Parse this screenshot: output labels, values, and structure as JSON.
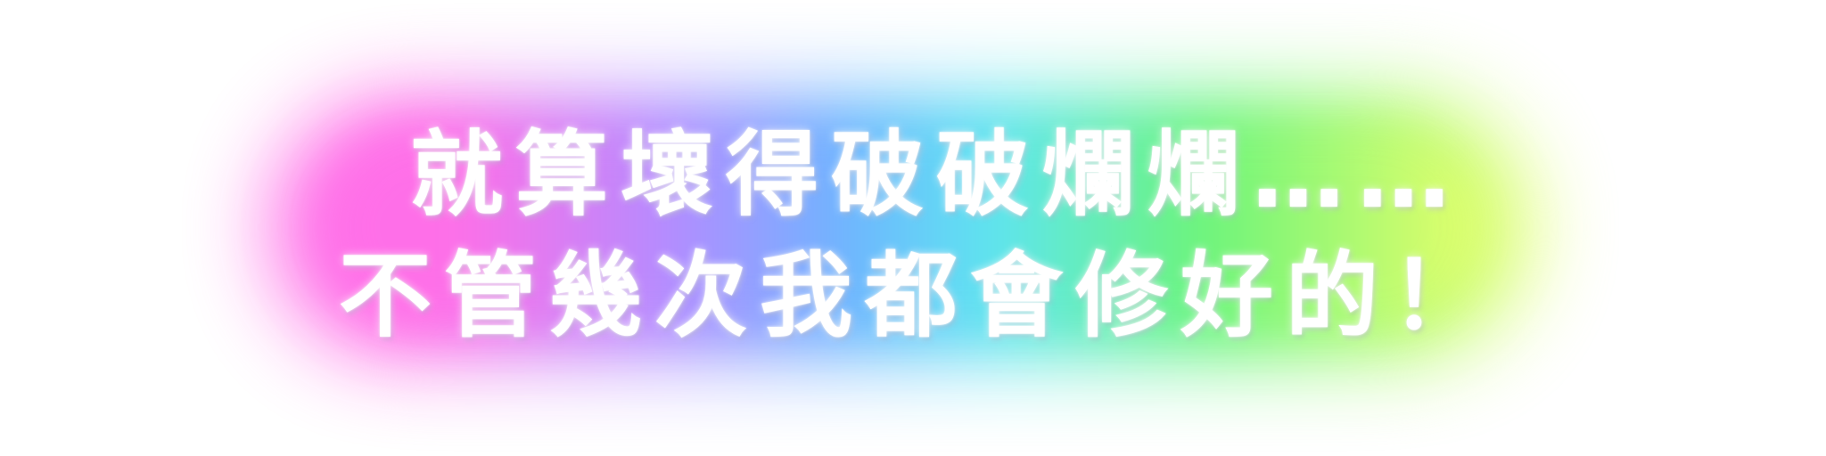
{
  "caption": {
    "line1": "就算壞得破破爛爛……",
    "line2": "不管幾次我都會修好的！"
  },
  "colors": {
    "text": "#ffffff",
    "background": "#ffffff",
    "glow_magenta": "#ff6fe8",
    "glow_violet": "#b58cff",
    "glow_blue": "#6fb4ff",
    "glow_cyan": "#5ee6f0",
    "glow_green": "#6cf57a",
    "glow_yellow": "#e9ff6a"
  }
}
